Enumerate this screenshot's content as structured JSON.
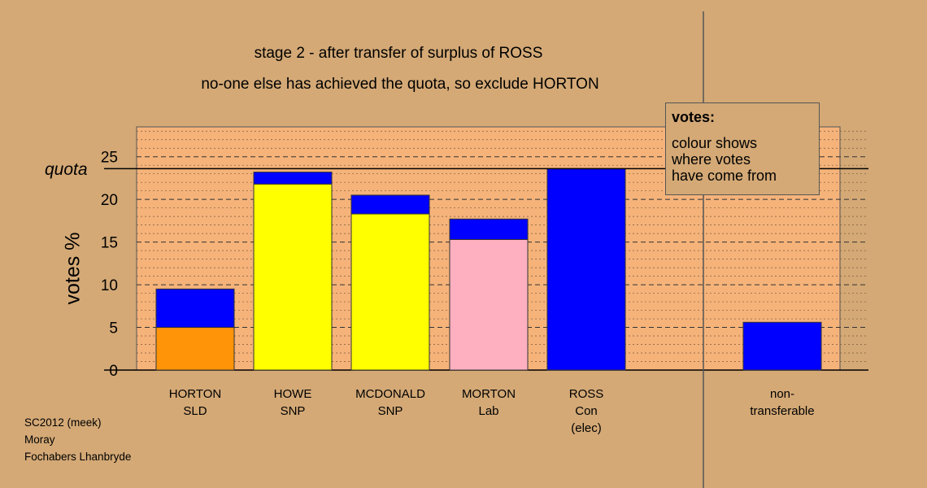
{
  "header": {
    "line1": "stage 2 - after transfer of surplus of ROSS",
    "line2": "no-one else has achieved the quota, so exclude HORTON"
  },
  "legend": {
    "heading": "votes:",
    "lines": [
      "colour shows",
      "where votes",
      "have come from"
    ]
  },
  "footer": {
    "line1": "SC2012 (meek)",
    "line2": "Moray",
    "line3": "Fochabers Lhanbryde"
  },
  "chart_data": {
    "type": "bar",
    "stacked": true,
    "ylabel": "votes %",
    "ylim": [
      0,
      28.5
    ],
    "yticks": [
      0,
      5,
      10,
      15,
      20,
      25
    ],
    "grid": "dotted minor lines every 1, dashed major lines every 5",
    "quota": {
      "label": "quota",
      "value": 23.6
    },
    "categories": [
      {
        "lines": [
          "HORTON",
          "SLD"
        ],
        "segments": [
          {
            "value": 5.0,
            "color": "#ff9408"
          },
          {
            "value": 4.5,
            "color": "#0000ff"
          }
        ]
      },
      {
        "lines": [
          "HOWE",
          "SNP"
        ],
        "segments": [
          {
            "value": 21.8,
            "color": "#ffff00"
          },
          {
            "value": 1.4,
            "color": "#0000ff"
          }
        ]
      },
      {
        "lines": [
          "MCDONALD",
          "SNP"
        ],
        "segments": [
          {
            "value": 18.3,
            "color": "#ffff00"
          },
          {
            "value": 2.2,
            "color": "#0000ff"
          }
        ]
      },
      {
        "lines": [
          "MORTON",
          "Lab"
        ],
        "segments": [
          {
            "value": 15.3,
            "color": "#ffb0c0"
          },
          {
            "value": 2.4,
            "color": "#0000ff"
          }
        ]
      },
      {
        "lines": [
          "ROSS",
          "Con",
          "(elec)"
        ],
        "segments": [
          {
            "value": 23.6,
            "color": "#0000ff"
          }
        ]
      }
    ],
    "nontransferable": {
      "lines": [
        "non-",
        "transferable"
      ],
      "value": 5.6,
      "color": "#0000ff"
    },
    "colors": {
      "background": "#d4a976",
      "plot_area": "#f5b37a",
      "divider": "#555555"
    }
  }
}
